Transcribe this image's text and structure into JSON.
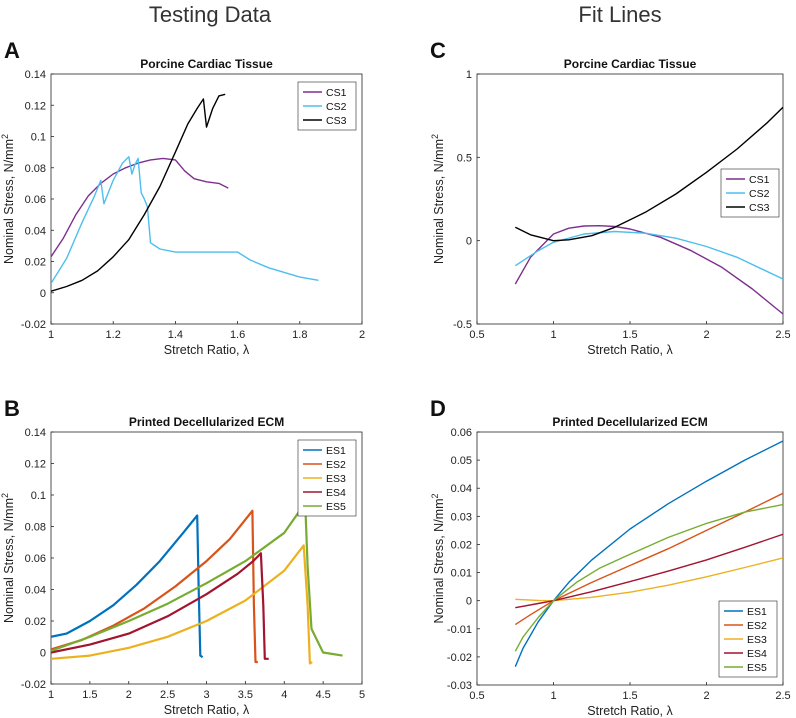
{
  "headings": {
    "left": "Testing Data",
    "right": "Fit Lines"
  },
  "panels": {
    "A": {
      "letter": "A"
    },
    "B": {
      "letter": "B"
    },
    "C": {
      "letter": "C"
    },
    "D": {
      "letter": "D"
    }
  },
  "chart_data": [
    {
      "id": "A",
      "type": "line",
      "title": "Porcine Cardiac Tissue",
      "xlabel": "Stretch Ratio, λ",
      "ylabel_main": "Nominal Stress, N/mm",
      "ylabel_sup": "2",
      "xlim": [
        1,
        2
      ],
      "ylim": [
        -0.02,
        0.14
      ],
      "xticks": [
        1,
        1.2,
        1.4,
        1.6,
        1.8,
        2
      ],
      "xtick_labels": [
        "1",
        "1.2",
        "1.4",
        "1.6",
        "1.8",
        "2"
      ],
      "yticks": [
        -0.02,
        0,
        0.02,
        0.04,
        0.06,
        0.08,
        0.1,
        0.12,
        0.14
      ],
      "ytick_labels": [
        "-0.02",
        "0",
        "0.02",
        "0.04",
        "0.06",
        "0.08",
        "0.1",
        "0.12",
        "0.14"
      ],
      "legend_position": "top-right",
      "series": [
        {
          "name": "CS1",
          "color": "#7E2F8E",
          "x": [
            1.0,
            1.04,
            1.08,
            1.12,
            1.16,
            1.2,
            1.24,
            1.28,
            1.32,
            1.36,
            1.4,
            1.43,
            1.46,
            1.5,
            1.54,
            1.57
          ],
          "y": [
            0.023,
            0.035,
            0.05,
            0.062,
            0.07,
            0.076,
            0.08,
            0.083,
            0.085,
            0.086,
            0.085,
            0.078,
            0.073,
            0.071,
            0.07,
            0.067
          ]
        },
        {
          "name": "CS2",
          "color": "#4DBEEE",
          "x": [
            1.0,
            1.05,
            1.1,
            1.14,
            1.16,
            1.17,
            1.2,
            1.23,
            1.25,
            1.26,
            1.27,
            1.28,
            1.29,
            1.3,
            1.31,
            1.32,
            1.35,
            1.4,
            1.5,
            1.6,
            1.64,
            1.7,
            1.8,
            1.86
          ],
          "y": [
            0.006,
            0.022,
            0.045,
            0.062,
            0.072,
            0.057,
            0.072,
            0.083,
            0.087,
            0.076,
            0.082,
            0.086,
            0.064,
            0.06,
            0.055,
            0.032,
            0.028,
            0.026,
            0.026,
            0.026,
            0.021,
            0.016,
            0.01,
            0.008
          ]
        },
        {
          "name": "CS3",
          "color": "#000000",
          "x": [
            1.0,
            1.05,
            1.1,
            1.15,
            1.2,
            1.25,
            1.3,
            1.35,
            1.4,
            1.44,
            1.47,
            1.49,
            1.5,
            1.52,
            1.54,
            1.56
          ],
          "y": [
            0.001,
            0.004,
            0.008,
            0.014,
            0.023,
            0.034,
            0.05,
            0.068,
            0.09,
            0.108,
            0.118,
            0.124,
            0.106,
            0.118,
            0.126,
            0.127
          ]
        }
      ]
    },
    {
      "id": "B",
      "type": "line",
      "title": "Printed Decellularized ECM",
      "xlabel": "Stretch Ratio, λ",
      "ylabel_main": "Nominal Stress, N/mm",
      "ylabel_sup": "2",
      "xlim": [
        1,
        5
      ],
      "ylim": [
        -0.02,
        0.14
      ],
      "xticks": [
        1,
        1.5,
        2,
        2.5,
        3,
        3.5,
        4,
        4.5,
        5
      ],
      "xtick_labels": [
        "1",
        "1.5",
        "2",
        "2.5",
        "3",
        "3.5",
        "4",
        "4.5",
        "5"
      ],
      "yticks": [
        -0.02,
        0,
        0.02,
        0.04,
        0.06,
        0.08,
        0.1,
        0.12,
        0.14
      ],
      "ytick_labels": [
        "-0.02",
        "0",
        "0.02",
        "0.04",
        "0.06",
        "0.08",
        "0.1",
        "0.12",
        "0.14"
      ],
      "legend_position": "top-right",
      "series": [
        {
          "name": "ES1",
          "color": "#0072BD",
          "x": [
            1.0,
            1.2,
            1.5,
            1.8,
            2.1,
            2.4,
            2.7,
            2.88,
            2.9,
            2.92,
            2.95
          ],
          "y": [
            0.01,
            0.012,
            0.02,
            0.03,
            0.043,
            0.058,
            0.076,
            0.087,
            0.04,
            -0.002,
            -0.003
          ]
        },
        {
          "name": "ES2",
          "color": "#D95319",
          "x": [
            1.0,
            1.4,
            1.8,
            2.2,
            2.6,
            3.0,
            3.3,
            3.59,
            3.61,
            3.63,
            3.66
          ],
          "y": [
            0.002,
            0.008,
            0.017,
            0.028,
            0.042,
            0.058,
            0.072,
            0.09,
            0.03,
            -0.006,
            -0.006
          ]
        },
        {
          "name": "ES3",
          "color": "#EDB120",
          "x": [
            1.0,
            1.5,
            2.0,
            2.5,
            3.0,
            3.5,
            4.0,
            4.25,
            4.3,
            4.33,
            4.36
          ],
          "y": [
            -0.004,
            -0.002,
            0.003,
            0.01,
            0.02,
            0.033,
            0.052,
            0.068,
            0.03,
            -0.007,
            -0.006
          ]
        },
        {
          "name": "ES4",
          "color": "#A2142F",
          "x": [
            1.0,
            1.5,
            2.0,
            2.5,
            3.0,
            3.4,
            3.6,
            3.7,
            3.73,
            3.75,
            3.8
          ],
          "y": [
            0.0,
            0.005,
            0.012,
            0.023,
            0.037,
            0.05,
            0.058,
            0.063,
            0.03,
            -0.004,
            -0.004
          ]
        },
        {
          "name": "ES5",
          "color": "#77AC30",
          "x": [
            1.0,
            1.5,
            2.0,
            2.5,
            3.0,
            3.5,
            4.0,
            4.27,
            4.3,
            4.35,
            4.5,
            4.75
          ],
          "y": [
            0.001,
            0.01,
            0.02,
            0.031,
            0.044,
            0.058,
            0.076,
            0.095,
            0.055,
            0.015,
            0.0,
            -0.002
          ]
        }
      ]
    },
    {
      "id": "C",
      "type": "line",
      "title": "Porcine Cardiac Tissue",
      "xlabel": "Stretch Ratio, λ",
      "ylabel_main": "Nominal Stress, N/mm",
      "ylabel_sup": "2",
      "xlim": [
        0.5,
        2.5
      ],
      "ylim": [
        -0.5,
        1
      ],
      "xticks": [
        0.5,
        1,
        1.5,
        2,
        2.5
      ],
      "xtick_labels": [
        "0.5",
        "1",
        "1.5",
        "2",
        "2.5"
      ],
      "yticks": [
        -0.5,
        0,
        0.5,
        1
      ],
      "ytick_labels": [
        "-0.5",
        "0",
        "0.5",
        "1"
      ],
      "legend_position": "right",
      "series": [
        {
          "name": "CS1",
          "color": "#7E2F8E",
          "x": [
            0.75,
            0.85,
            1.0,
            1.1,
            1.2,
            1.3,
            1.4,
            1.5,
            1.7,
            1.9,
            2.1,
            2.3,
            2.5
          ],
          "y": [
            -0.26,
            -0.1,
            0.04,
            0.075,
            0.088,
            0.09,
            0.085,
            0.07,
            0.02,
            -0.06,
            -0.16,
            -0.29,
            -0.44
          ]
        },
        {
          "name": "CS2",
          "color": "#4DBEEE",
          "x": [
            0.75,
            0.9,
            1.0,
            1.2,
            1.4,
            1.6,
            1.8,
            2.0,
            2.2,
            2.5
          ],
          "y": [
            -0.15,
            -0.06,
            -0.01,
            0.04,
            0.055,
            0.045,
            0.015,
            -0.035,
            -0.1,
            -0.23
          ]
        },
        {
          "name": "CS3",
          "color": "#000000",
          "x": [
            0.75,
            0.85,
            1.0,
            1.1,
            1.25,
            1.4,
            1.6,
            1.8,
            2.0,
            2.2,
            2.4,
            2.5
          ],
          "y": [
            0.08,
            0.035,
            0.0,
            0.005,
            0.03,
            0.08,
            0.17,
            0.28,
            0.41,
            0.55,
            0.71,
            0.8
          ]
        }
      ]
    },
    {
      "id": "D",
      "type": "line",
      "title": "Printed Decellularized ECM",
      "xlabel": "Stretch Ratio, λ",
      "ylabel_main": "Nominal Stress, N/mm",
      "ylabel_sup": "2",
      "xlim": [
        0.5,
        2.5
      ],
      "ylim": [
        -0.03,
        0.06
      ],
      "xticks": [
        0.5,
        1,
        1.5,
        2,
        2.5
      ],
      "xtick_labels": [
        "0.5",
        "1",
        "1.5",
        "2",
        "2.5"
      ],
      "yticks": [
        -0.03,
        -0.02,
        -0.01,
        0,
        0.01,
        0.02,
        0.03,
        0.04,
        0.05,
        0.06
      ],
      "ytick_labels": [
        "-0.03",
        "-0.02",
        "-0.01",
        "0",
        "0.01",
        "0.02",
        "0.03",
        "0.04",
        "0.05",
        "0.06"
      ],
      "legend_position": "bottom-right",
      "series": [
        {
          "name": "ES1",
          "color": "#0072BD",
          "x": [
            0.75,
            0.8,
            0.9,
            1.0,
            1.1,
            1.25,
            1.5,
            1.75,
            2.0,
            2.25,
            2.5
          ],
          "y": [
            -0.0235,
            -0.017,
            -0.0075,
            0.0,
            0.0065,
            0.0145,
            0.0255,
            0.0345,
            0.0425,
            0.05,
            0.0568
          ]
        },
        {
          "name": "ES2",
          "color": "#D95319",
          "x": [
            0.75,
            0.85,
            1.0,
            1.25,
            1.5,
            1.75,
            2.0,
            2.25,
            2.5
          ],
          "y": [
            -0.0085,
            -0.005,
            0.0,
            0.0065,
            0.0125,
            0.0185,
            0.025,
            0.0315,
            0.0382
          ]
        },
        {
          "name": "ES3",
          "color": "#EDB120",
          "x": [
            0.75,
            0.9,
            1.0,
            1.25,
            1.5,
            1.75,
            2.0,
            2.25,
            2.5
          ],
          "y": [
            0.0005,
            0.0001,
            0.0,
            0.0012,
            0.003,
            0.0055,
            0.0085,
            0.0118,
            0.0152
          ]
        },
        {
          "name": "ES4",
          "color": "#A2142F",
          "x": [
            0.75,
            0.9,
            1.0,
            1.25,
            1.5,
            1.75,
            2.0,
            2.25,
            2.5
          ],
          "y": [
            -0.0025,
            -0.001,
            0.0,
            0.0032,
            0.0068,
            0.0105,
            0.0145,
            0.019,
            0.0236
          ]
        },
        {
          "name": "ES5",
          "color": "#77AC30",
          "x": [
            0.75,
            0.8,
            0.9,
            1.0,
            1.15,
            1.3,
            1.5,
            1.75,
            2.0,
            2.25,
            2.5
          ],
          "y": [
            -0.018,
            -0.013,
            -0.006,
            0.0,
            0.0065,
            0.0115,
            0.0165,
            0.0225,
            0.0275,
            0.0315,
            0.0342
          ]
        }
      ]
    }
  ]
}
